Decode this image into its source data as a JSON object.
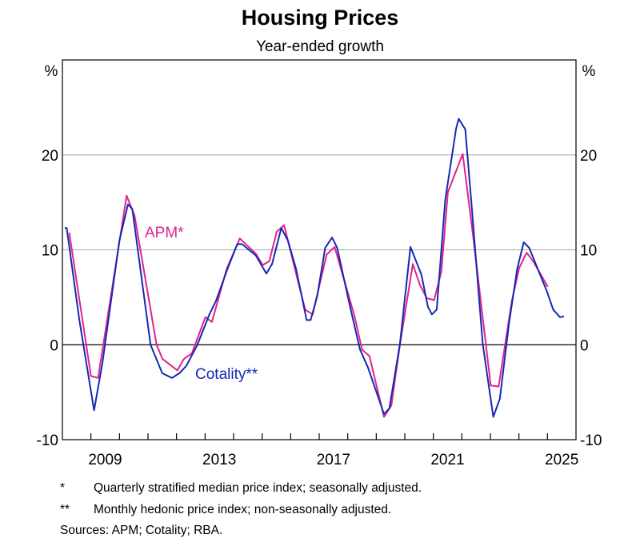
{
  "chart_data": {
    "type": "line",
    "title": "Housing Prices",
    "subtitle": "Year-ended growth",
    "ylabel_left": "%",
    "ylabel_right": "%",
    "xlim": [
      2008,
      2026
    ],
    "ylim": [
      -10,
      30
    ],
    "yticks": [
      -10,
      0,
      10,
      20
    ],
    "ytick_labels": [
      "-10",
      "0",
      "10",
      "20"
    ],
    "xtick_labels": [
      {
        "label": "2009",
        "year": 2009
      },
      {
        "label": "2013",
        "year": 2013
      },
      {
        "label": "2017",
        "year": 2017
      },
      {
        "label": "2021",
        "year": 2021
      },
      {
        "label": "2025",
        "year": 2025
      }
    ],
    "grid": true,
    "series": [
      {
        "name": "APM*",
        "color": "#e0238a",
        "points": [
          [
            2008.24,
            11.8
          ],
          [
            2009.0,
            -3.3
          ],
          [
            2009.25,
            -3.5
          ],
          [
            2010.25,
            15.7
          ],
          [
            2010.53,
            13.6
          ],
          [
            2011.3,
            0.0
          ],
          [
            2011.51,
            -1.5
          ],
          [
            2012.03,
            -2.7
          ],
          [
            2012.26,
            -1.5
          ],
          [
            2012.54,
            -0.9
          ],
          [
            2013.01,
            2.9
          ],
          [
            2013.24,
            2.4
          ],
          [
            2013.76,
            8.0
          ],
          [
            2014.22,
            11.2
          ],
          [
            2014.78,
            9.6
          ],
          [
            2015.02,
            8.4
          ],
          [
            2015.25,
            8.8
          ],
          [
            2015.51,
            11.9
          ],
          [
            2015.77,
            12.6
          ],
          [
            2016.19,
            7.5
          ],
          [
            2016.51,
            3.7
          ],
          [
            2016.77,
            3.2
          ],
          [
            2017.26,
            9.5
          ],
          [
            2017.54,
            10.3
          ],
          [
            2017.82,
            7.4
          ],
          [
            2018.24,
            3.0
          ],
          [
            2018.5,
            -0.5
          ],
          [
            2018.76,
            -1.2
          ],
          [
            2019.27,
            -7.6
          ],
          [
            2019.53,
            -6.4
          ],
          [
            2019.83,
            0.0
          ],
          [
            2020.28,
            8.5
          ],
          [
            2020.53,
            6.3
          ],
          [
            2020.77,
            4.9
          ],
          [
            2021.03,
            4.7
          ],
          [
            2021.28,
            7.7
          ],
          [
            2021.51,
            16.1
          ],
          [
            2022.03,
            20.1
          ],
          [
            2022.4,
            11.3
          ],
          [
            2023.01,
            -4.3
          ],
          [
            2023.29,
            -4.4
          ],
          [
            2023.75,
            4.6
          ],
          [
            2024.01,
            8.1
          ],
          [
            2024.27,
            9.7
          ],
          [
            2024.5,
            8.8
          ],
          [
            2025.01,
            6.1
          ]
        ]
      },
      {
        "name": "Cotality**",
        "color": "#1428b4",
        "points": [
          [
            2008.08,
            12.3
          ],
          [
            2008.15,
            12.3
          ],
          [
            2008.6,
            2.5
          ],
          [
            2009.11,
            -6.9
          ],
          [
            2009.4,
            -2.0
          ],
          [
            2010.0,
            11.0
          ],
          [
            2010.3,
            14.8
          ],
          [
            2010.45,
            14.3
          ],
          [
            2011.09,
            0.0
          ],
          [
            2011.5,
            -3.0
          ],
          [
            2011.84,
            -3.5
          ],
          [
            2012.1,
            -3.0
          ],
          [
            2012.35,
            -2.2
          ],
          [
            2012.73,
            0.0
          ],
          [
            2013.15,
            3.2
          ],
          [
            2013.38,
            4.6
          ],
          [
            2013.75,
            7.7
          ],
          [
            2014.13,
            10.6
          ],
          [
            2014.3,
            10.6
          ],
          [
            2014.78,
            9.4
          ],
          [
            2015.15,
            7.5
          ],
          [
            2015.35,
            8.5
          ],
          [
            2015.67,
            12.3
          ],
          [
            2015.9,
            11.0
          ],
          [
            2016.19,
            8.0
          ],
          [
            2016.56,
            2.6
          ],
          [
            2016.7,
            2.6
          ],
          [
            2016.93,
            5.1
          ],
          [
            2017.21,
            10.2
          ],
          [
            2017.45,
            11.3
          ],
          [
            2017.63,
            10.2
          ],
          [
            2018.06,
            4.3
          ],
          [
            2018.43,
            -0.5
          ],
          [
            2018.71,
            -2.4
          ],
          [
            2019.27,
            -7.3
          ],
          [
            2019.46,
            -6.7
          ],
          [
            2019.83,
            0.1
          ],
          [
            2020.2,
            10.3
          ],
          [
            2020.58,
            7.4
          ],
          [
            2020.81,
            4.0
          ],
          [
            2020.95,
            3.2
          ],
          [
            2021.12,
            3.7
          ],
          [
            2021.42,
            15.3
          ],
          [
            2021.8,
            22.8
          ],
          [
            2021.89,
            23.8
          ],
          [
            2022.12,
            22.7
          ],
          [
            2022.35,
            14.4
          ],
          [
            2022.73,
            0.1
          ],
          [
            2023.1,
            -7.6
          ],
          [
            2023.33,
            -5.7
          ],
          [
            2023.66,
            2.4
          ],
          [
            2023.94,
            8.0
          ],
          [
            2024.17,
            10.8
          ],
          [
            2024.36,
            10.2
          ],
          [
            2024.97,
            5.7
          ],
          [
            2025.2,
            3.7
          ],
          [
            2025.44,
            2.9
          ],
          [
            2025.58,
            3.0
          ]
        ]
      }
    ],
    "legend": "inline labels",
    "footnotes": [
      {
        "mark": "*",
        "text": "Quarterly stratified median price index; seasonally adjusted."
      },
      {
        "mark": "**",
        "text": "Monthly hedonic price index; non-seasonally adjusted."
      }
    ],
    "sources": "Sources: APM; Cotality; RBA."
  }
}
